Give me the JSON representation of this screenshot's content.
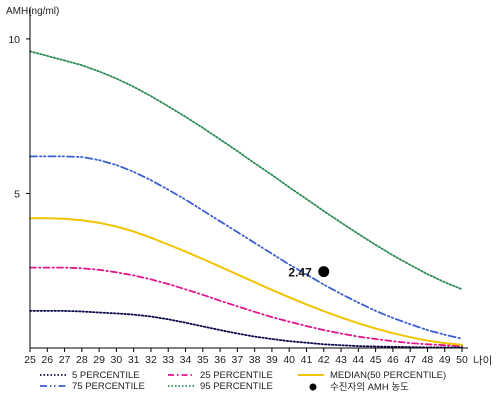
{
  "chart_data": {
    "type": "line",
    "title": "",
    "ylabel": "AMH(ng/ml)",
    "xlabel": "나이",
    "xlim": [
      25,
      50
    ],
    "ylim": [
      0,
      11
    ],
    "yticks": [
      5,
      10
    ],
    "x": [
      25,
      26,
      27,
      28,
      29,
      30,
      31,
      32,
      33,
      34,
      35,
      36,
      37,
      38,
      39,
      40,
      41,
      42,
      43,
      44,
      45,
      46,
      47,
      48,
      49,
      50
    ],
    "series": [
      {
        "name": "5 PERCENTILE",
        "color": "#0a0a4a",
        "dash": "dotted",
        "values": [
          1.2,
          1.2,
          1.2,
          1.18,
          1.15,
          1.12,
          1.08,
          1.02,
          0.93,
          0.82,
          0.7,
          0.58,
          0.47,
          0.37,
          0.29,
          0.22,
          0.17,
          0.12,
          0.09,
          0.06,
          0.05,
          0.04,
          0.03,
          0.02,
          0.02,
          0.02
        ]
      },
      {
        "name": "25 PERCENTILE",
        "color": "#e0168c",
        "dash": "dashdot",
        "values": [
          2.6,
          2.6,
          2.6,
          2.58,
          2.53,
          2.45,
          2.35,
          2.22,
          2.07,
          1.9,
          1.72,
          1.53,
          1.35,
          1.17,
          1.0,
          0.85,
          0.71,
          0.58,
          0.47,
          0.37,
          0.29,
          0.22,
          0.16,
          0.12,
          0.09,
          0.07
        ]
      },
      {
        "name": "MEDIAN(50 PERCENTILE)",
        "color": "#f0c400",
        "dash": "solid",
        "values": [
          4.2,
          4.2,
          4.18,
          4.13,
          4.05,
          3.93,
          3.77,
          3.57,
          3.35,
          3.12,
          2.88,
          2.63,
          2.38,
          2.13,
          1.88,
          1.64,
          1.41,
          1.19,
          0.99,
          0.8,
          0.63,
          0.48,
          0.35,
          0.24,
          0.16,
          0.1
        ]
      },
      {
        "name": "75 PERCENTILE",
        "color": "#3a5fd0",
        "dash": "dashdotdot",
        "values": [
          6.2,
          6.2,
          6.2,
          6.18,
          6.08,
          5.92,
          5.7,
          5.43,
          5.12,
          4.8,
          4.45,
          4.1,
          3.75,
          3.4,
          3.05,
          2.7,
          2.38,
          2.05,
          1.75,
          1.47,
          1.2,
          0.97,
          0.77,
          0.58,
          0.43,
          0.3
        ]
      },
      {
        "name": "95 PERCENTILE",
        "color": "#2e8b57",
        "dash": "dotted",
        "values": [
          9.6,
          9.45,
          9.3,
          9.15,
          8.95,
          8.72,
          8.45,
          8.15,
          7.82,
          7.48,
          7.12,
          6.75,
          6.37,
          5.98,
          5.6,
          5.2,
          4.82,
          4.43,
          4.06,
          3.69,
          3.34,
          3.0,
          2.69,
          2.39,
          2.13,
          1.9
        ]
      }
    ],
    "marker": {
      "label": "수진자의 AMH 농도",
      "x": 42,
      "y": 2.47,
      "text": "2.47"
    }
  }
}
